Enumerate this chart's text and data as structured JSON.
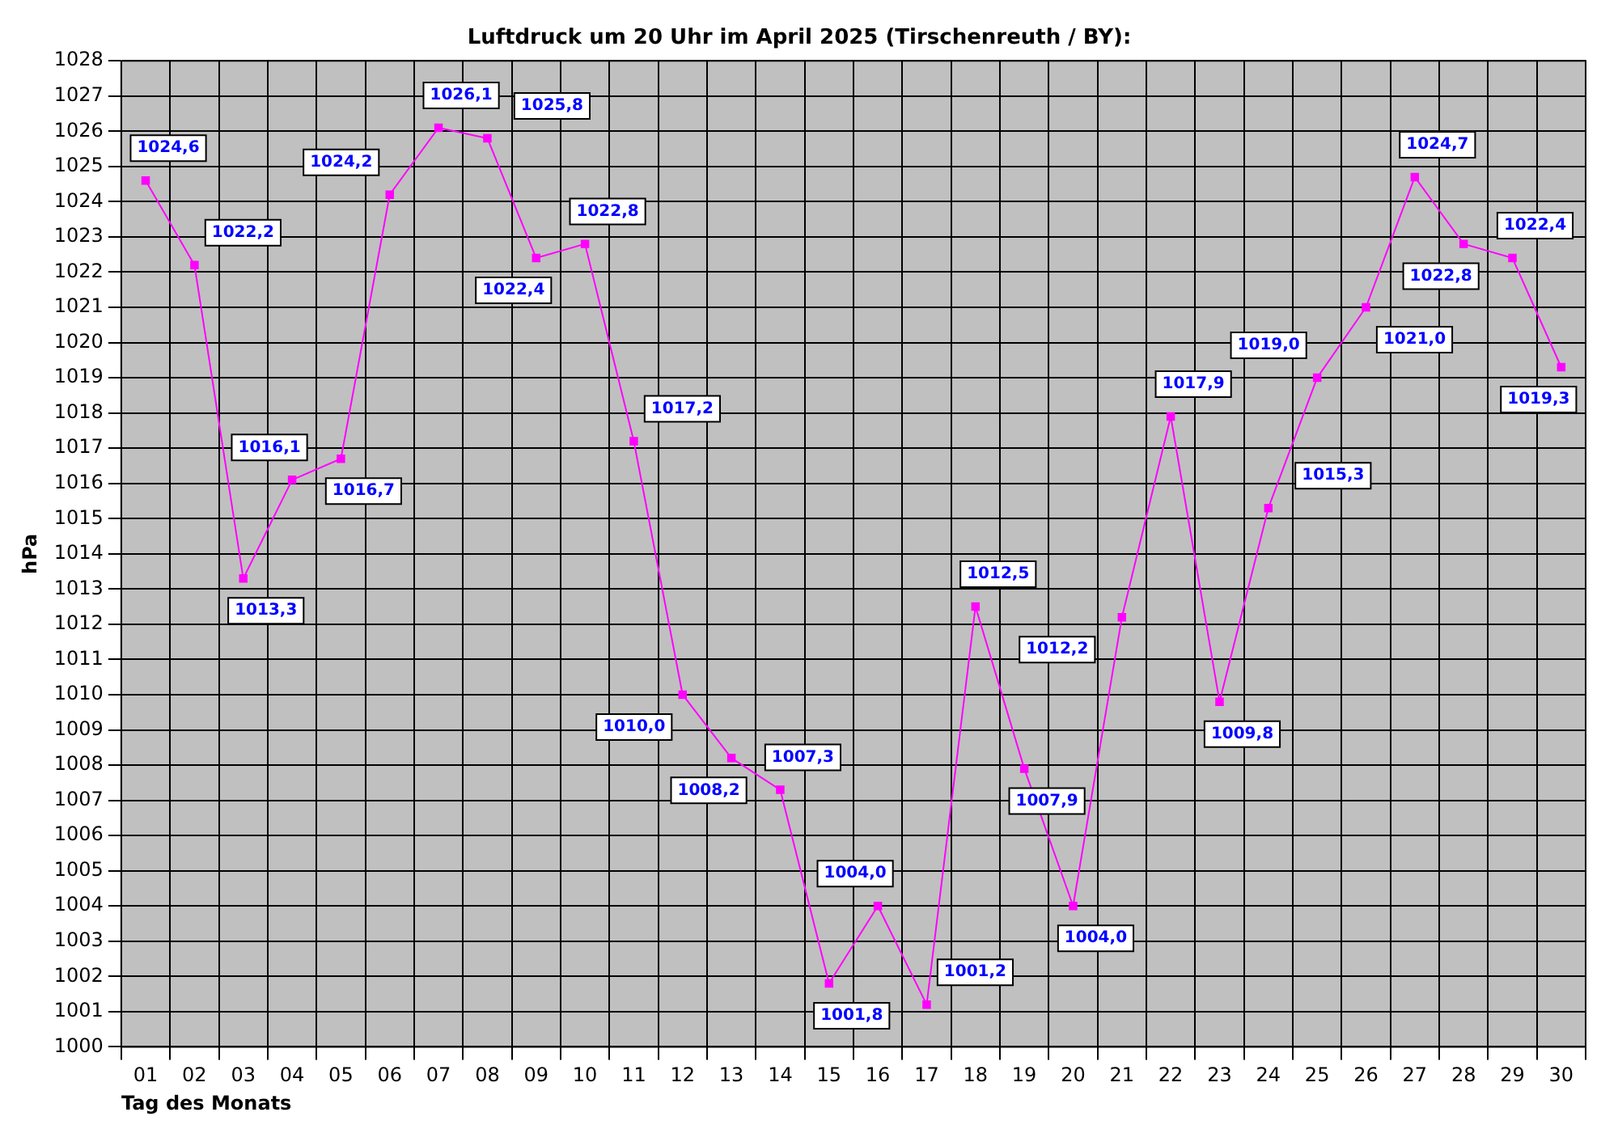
{
  "chart_data": {
    "type": "line",
    "title": "Luftdruck um 20 Uhr im April 2025 (Tirschenreuth / BY):",
    "xlabel": "Tag des Monats",
    "ylabel": "hPa",
    "categories": [
      "01",
      "02",
      "03",
      "04",
      "05",
      "06",
      "07",
      "08",
      "09",
      "10",
      "11",
      "12",
      "13",
      "14",
      "15",
      "16",
      "17",
      "18",
      "19",
      "20",
      "21",
      "22",
      "23",
      "24",
      "25",
      "26",
      "27",
      "28",
      "29",
      "30"
    ],
    "series": [
      {
        "color": "#ff00ff",
        "values": [
          1024.6,
          1022.2,
          1013.3,
          1016.1,
          1016.7,
          1024.2,
          1026.1,
          1025.8,
          1022.4,
          1022.8,
          1017.2,
          1010.0,
          1008.2,
          1007.3,
          1001.8,
          1004.0,
          1001.2,
          1012.5,
          1007.9,
          1004.0,
          1012.2,
          1017.9,
          1009.8,
          1015.3,
          1019.0,
          1021.0,
          1024.7,
          1022.8,
          1022.4,
          1019.3
        ],
        "value_labels": [
          "1024,6",
          "1022,2",
          "1013,3",
          "1016,1",
          "1016,7",
          "1024,2",
          "1026,1",
          "1025,8",
          "1022,4",
          "1022,8",
          "1017,2",
          "1010,0",
          "1008,2",
          "1007,3",
          "1001,8",
          "1004,0",
          "1001,2",
          "1012,5",
          "1007,9",
          "1004,0",
          "1012,2",
          "1017,9",
          "1009,8",
          "1015,3",
          "1019,0",
          "1021,0",
          "1024,7",
          "1022,8",
          "1022,4",
          "1019,3"
        ]
      }
    ],
    "ylim": [
      1000,
      1028
    ],
    "yticks": [
      1000,
      1001,
      1002,
      1003,
      1004,
      1005,
      1006,
      1007,
      1008,
      1009,
      1010,
      1011,
      1012,
      1013,
      1014,
      1015,
      1016,
      1017,
      1018,
      1019,
      1020,
      1021,
      1022,
      1023,
      1024,
      1025,
      1026,
      1027,
      1028
    ],
    "grid": true,
    "legend": false,
    "marker": "square",
    "line_style": "solid"
  }
}
